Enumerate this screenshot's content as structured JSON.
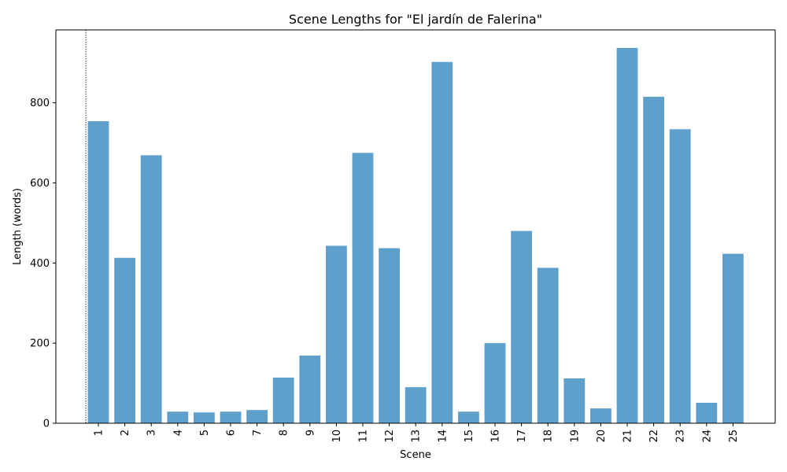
{
  "chart_data": {
    "type": "bar",
    "title": "Scene Lengths for \"El jardín de Falerina\"",
    "xlabel": "Scene",
    "ylabel": "Length (words)",
    "categories": [
      "1",
      "2",
      "3",
      "4",
      "5",
      "6",
      "7",
      "8",
      "9",
      "10",
      "11",
      "12",
      "13",
      "14",
      "15",
      "16",
      "17",
      "18",
      "19",
      "20",
      "21",
      "22",
      "23",
      "24",
      "25"
    ],
    "values": [
      754,
      413,
      669,
      29,
      27,
      29,
      33,
      114,
      169,
      443,
      675,
      437,
      90,
      902,
      29,
      200,
      480,
      388,
      112,
      37,
      937,
      815,
      734,
      51,
      423
    ],
    "ylim": [
      0,
      982
    ],
    "yticks": [
      0,
      200,
      400,
      600,
      800
    ],
    "bar_color": "#5f9fcc",
    "grid": false,
    "legend": "none",
    "reference_line": {
      "x_category": "1",
      "position": "left of first bar",
      "style": "dotted",
      "color": "#000000"
    }
  }
}
